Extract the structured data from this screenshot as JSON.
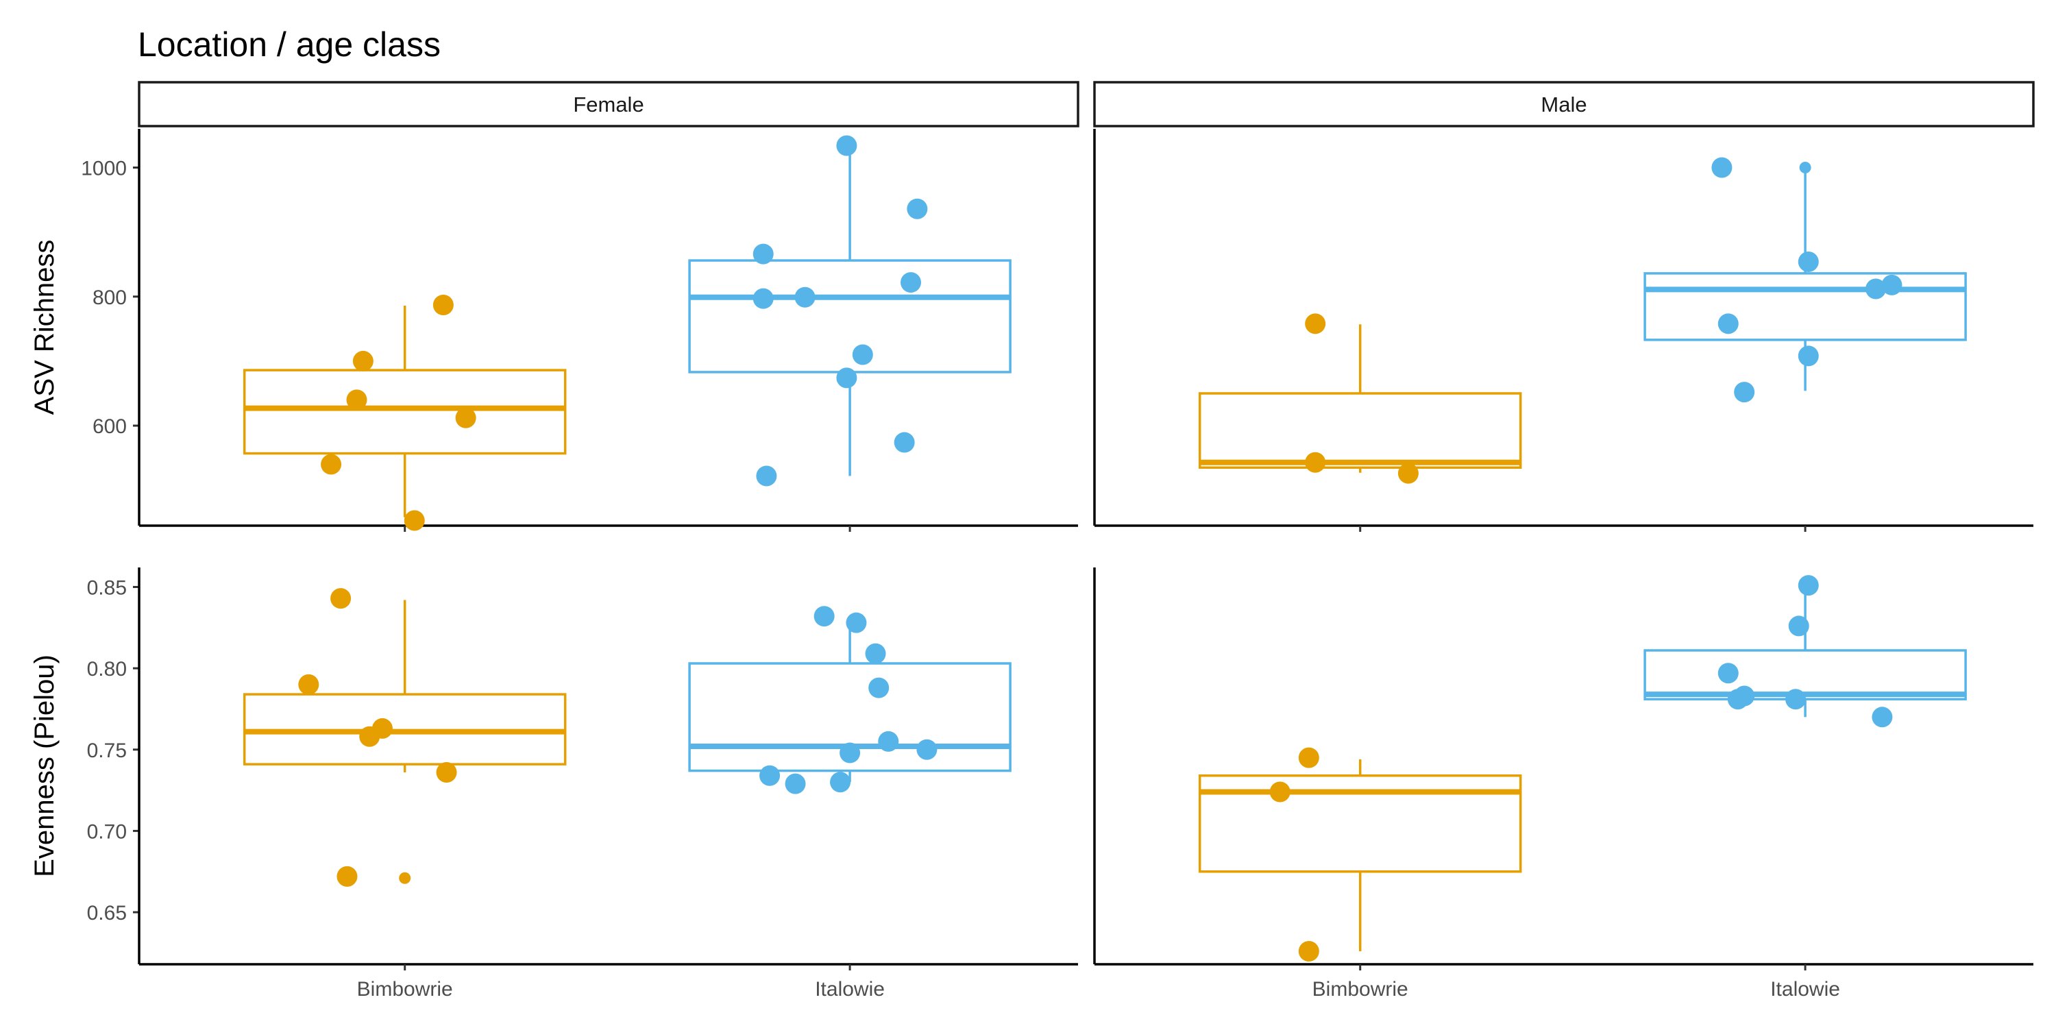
{
  "chart_data": {
    "type": "boxplot",
    "title": "Location / age class",
    "facets": [
      "Female",
      "Male"
    ],
    "categories": [
      "Bimbowrie",
      "Italowie"
    ],
    "colors": {
      "Bimbowrie": "#E69F00",
      "Italowie": "#56B4E9"
    },
    "legend": "none",
    "grid": false,
    "rows": [
      {
        "ylabel": "ASV Richness",
        "ylim": [
          445,
          1060
        ],
        "yticks": [
          600,
          800,
          1000
        ],
        "tick_labels": [
          "600",
          "800",
          "1000"
        ],
        "panels": [
          {
            "facet": "Female",
            "boxes": [
              {
                "category": "Bimbowrie",
                "whisker_low": 458,
                "q1": 557,
                "median": 627,
                "q3": 686,
                "whisker_high": 786,
                "outliers": [],
                "points": [
                  [
                    -0.23,
                    540
                  ],
                  [
                    -0.15,
                    640
                  ],
                  [
                    -0.13,
                    700
                  ],
                  [
                    0.03,
                    453
                  ],
                  [
                    0.12,
                    787
                  ],
                  [
                    0.19,
                    612
                  ]
                ]
              },
              {
                "category": "Italowie",
                "whisker_low": 522,
                "q1": 683,
                "median": 799,
                "q3": 856,
                "whisker_high": 1036,
                "outliers": [],
                "points": [
                  [
                    -0.27,
                    866
                  ],
                  [
                    -0.27,
                    797
                  ],
                  [
                    -0.14,
                    799
                  ],
                  [
                    -0.01,
                    1034
                  ],
                  [
                    -0.01,
                    674
                  ],
                  [
                    0.04,
                    710
                  ],
                  [
                    0.17,
                    574
                  ],
                  [
                    0.19,
                    822
                  ],
                  [
                    0.21,
                    936
                  ],
                  [
                    -0.26,
                    522
                  ]
                ]
              }
            ]
          },
          {
            "facet": "Male",
            "boxes": [
              {
                "category": "Bimbowrie",
                "whisker_low": 527,
                "q1": 535,
                "median": 543,
                "q3": 650,
                "whisker_high": 757,
                "outliers": [],
                "points": [
                  [
                    -0.14,
                    758
                  ],
                  [
                    -0.14,
                    543
                  ],
                  [
                    0.15,
                    526
                  ]
                ]
              },
              {
                "category": "Italowie",
                "whisker_low": 654,
                "q1": 733,
                "median": 811,
                "q3": 836,
                "whisker_high": 1000,
                "outliers": [
                  1000
                ],
                "points": [
                  [
                    -0.26,
                    1000
                  ],
                  [
                    -0.24,
                    758
                  ],
                  [
                    -0.19,
                    652
                  ],
                  [
                    0.01,
                    708
                  ],
                  [
                    0.01,
                    854
                  ],
                  [
                    0.22,
                    812
                  ],
                  [
                    0.27,
                    818
                  ]
                ]
              }
            ]
          }
        ]
      },
      {
        "ylabel": "Evenness (Pielou)",
        "ylim": [
          0.618,
          0.862
        ],
        "yticks": [
          0.65,
          0.7,
          0.75,
          0.8,
          0.85
        ],
        "tick_labels": [
          "0.65",
          "0.70",
          "0.75",
          "0.80",
          "0.85"
        ],
        "panels": [
          {
            "facet": "Female",
            "boxes": [
              {
                "category": "Bimbowrie",
                "whisker_low": 0.736,
                "q1": 0.741,
                "median": 0.761,
                "q3": 0.784,
                "whisker_high": 0.842,
                "outliers": [
                  0.671
                ],
                "points": [
                  [
                    -0.3,
                    0.79
                  ],
                  [
                    -0.2,
                    0.843
                  ],
                  [
                    -0.18,
                    0.672
                  ],
                  [
                    -0.11,
                    0.758
                  ],
                  [
                    -0.07,
                    0.763
                  ],
                  [
                    0.13,
                    0.736
                  ]
                ]
              },
              {
                "category": "Italowie",
                "whisker_low": 0.73,
                "q1": 0.737,
                "median": 0.752,
                "q3": 0.803,
                "whisker_high": 0.828,
                "outliers": [],
                "points": [
                  [
                    -0.25,
                    0.734
                  ],
                  [
                    -0.17,
                    0.729
                  ],
                  [
                    -0.08,
                    0.832
                  ],
                  [
                    -0.03,
                    0.73
                  ],
                  [
                    0.0,
                    0.748
                  ],
                  [
                    0.02,
                    0.828
                  ],
                  [
                    0.08,
                    0.809
                  ],
                  [
                    0.09,
                    0.788
                  ],
                  [
                    0.12,
                    0.755
                  ],
                  [
                    0.24,
                    0.75
                  ]
                ]
              }
            ]
          },
          {
            "facet": "Male",
            "boxes": [
              {
                "category": "Bimbowrie",
                "whisker_low": 0.626,
                "q1": 0.675,
                "median": 0.724,
                "q3": 0.734,
                "whisker_high": 0.744,
                "outliers": [],
                "points": [
                  [
                    -0.25,
                    0.724
                  ],
                  [
                    -0.16,
                    0.745
                  ],
                  [
                    -0.16,
                    0.626
                  ]
                ]
              },
              {
                "category": "Italowie",
                "whisker_low": 0.77,
                "q1": 0.781,
                "median": 0.784,
                "q3": 0.811,
                "whisker_high": 0.851,
                "outliers": [],
                "points": [
                  [
                    -0.24,
                    0.797
                  ],
                  [
                    -0.21,
                    0.781
                  ],
                  [
                    -0.19,
                    0.783
                  ],
                  [
                    -0.03,
                    0.781
                  ],
                  [
                    -0.02,
                    0.826
                  ],
                  [
                    0.01,
                    0.851
                  ],
                  [
                    0.24,
                    0.77
                  ]
                ]
              }
            ]
          }
        ]
      }
    ]
  }
}
